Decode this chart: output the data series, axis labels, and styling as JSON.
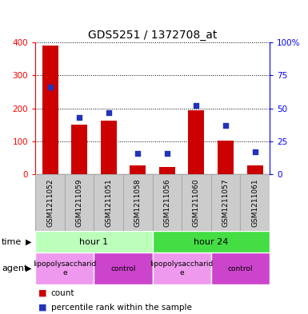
{
  "title": "GDS5251 / 1372708_at",
  "samples": [
    "GSM1211052",
    "GSM1211059",
    "GSM1211051",
    "GSM1211058",
    "GSM1211056",
    "GSM1211060",
    "GSM1211057",
    "GSM1211061"
  ],
  "counts": [
    390,
    150,
    163,
    27,
    22,
    193,
    103,
    28
  ],
  "percentiles": [
    66,
    43,
    47,
    16,
    16,
    52,
    37,
    17
  ],
  "ylim_left": [
    0,
    400
  ],
  "ylim_right": [
    0,
    100
  ],
  "yticks_left": [
    0,
    100,
    200,
    300,
    400
  ],
  "yticks_right": [
    0,
    25,
    50,
    75,
    100
  ],
  "yticklabels_right": [
    "0",
    "25",
    "50",
    "75",
    "100%"
  ],
  "bar_color": "#cc0000",
  "dot_color": "#2233bb",
  "background_color": "#ffffff",
  "gray_box_color": "#cccccc",
  "gray_box_edge": "#aaaaaa",
  "time_row": [
    {
      "label": "hour 1",
      "start": 0,
      "end": 4,
      "color": "#bbffbb"
    },
    {
      "label": "hour 24",
      "start": 4,
      "end": 8,
      "color": "#44dd44"
    }
  ],
  "agent_row": [
    {
      "label": "lipopolysaccharid\ne",
      "start": 0,
      "end": 2,
      "color": "#ee99ee"
    },
    {
      "label": "control",
      "start": 2,
      "end": 4,
      "color": "#cc44cc"
    },
    {
      "label": "lipopolysaccharid\ne",
      "start": 4,
      "end": 6,
      "color": "#ee99ee"
    },
    {
      "label": "control",
      "start": 6,
      "end": 8,
      "color": "#cc44cc"
    }
  ],
  "time_label": "time",
  "agent_label": "agent",
  "title_fontsize": 10,
  "tick_fontsize": 7.5,
  "sample_fontsize": 6.5,
  "row_fontsize": 8,
  "legend_fontsize": 7.5
}
